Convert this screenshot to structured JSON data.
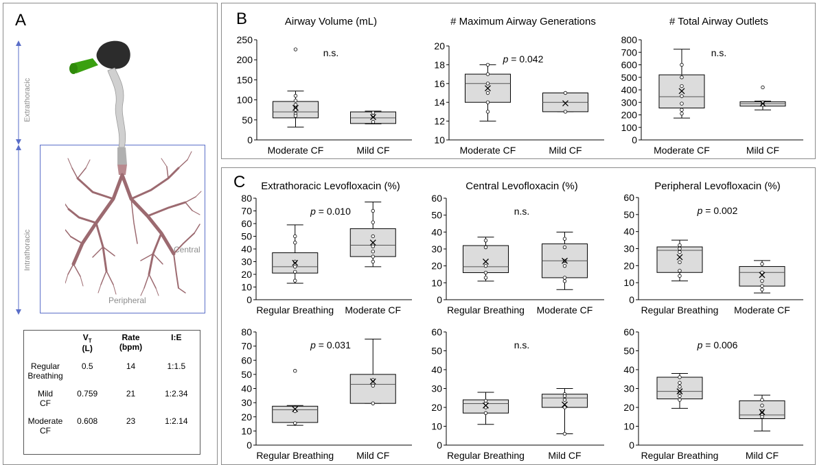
{
  "panel_a": {
    "label": "A",
    "labels": {
      "extrathoracic": "Extrathoracic",
      "intrathoracic": "Intrathoracic",
      "central": "Central",
      "peripheral": "Peripheral"
    },
    "table": {
      "headers": [
        "",
        "V_T (L)",
        "Rate (bpm)",
        "I:E"
      ],
      "header_vt": "V",
      "header_vt_sub": "T",
      "header_vt_unit": "(L)",
      "header_rate": "Rate",
      "header_rate_unit": "(bpm)",
      "header_ie": "I:E",
      "rows": [
        {
          "name": "Regular Breathing",
          "name1": "Regular",
          "name2": "Breathing",
          "vt": "0.5",
          "rate": "14",
          "ie": "1:1.5"
        },
        {
          "name": "Mild CF",
          "name1": "Mild",
          "name2": "CF",
          "vt": "0.759",
          "rate": "21",
          "ie": "1:2.34"
        },
        {
          "name": "Moderate CF",
          "name1": "Moderate",
          "name2": "CF",
          "vt": "0.608",
          "rate": "23",
          "ie": "1:2.14"
        }
      ]
    }
  },
  "panel_b_label": "B",
  "panel_c_label": "C",
  "colors": {
    "box_fill": "#dcdcdc",
    "box_stroke": "#000000",
    "airway_upper": "#d0d0d0",
    "airway_lower": "#b88a8f",
    "mouthpiece": "#3aa010",
    "region_box": "#5a6ec8"
  },
  "chart_data": [
    {
      "type": "box",
      "title": "Airway Volume (mL)",
      "categories": [
        "Moderate CF",
        "Mild CF"
      ],
      "ylim": [
        0,
        250
      ],
      "yticks": [
        0,
        50,
        100,
        150,
        200,
        250
      ],
      "annotation": "n.s.",
      "boxes": [
        {
          "category": "Moderate CF",
          "min": 32,
          "q1": 55,
          "median": 70,
          "q3": 96,
          "max": 122,
          "mean": 80,
          "points": [
            226,
            110,
            98,
            88,
            80,
            75,
            65,
            60
          ]
        },
        {
          "category": "Mild CF",
          "min": 40,
          "q1": 41,
          "median": 55,
          "q3": 70,
          "max": 72,
          "mean": 57,
          "points": [
            68,
            60,
            45
          ]
        }
      ]
    },
    {
      "type": "box",
      "title": "# Maximum Airway Generations",
      "categories": [
        "Moderate CF",
        "Mild CF"
      ],
      "ylim": [
        10,
        20
      ],
      "yticks": [
        10,
        12,
        14,
        16,
        18,
        20
      ],
      "annotation": "p = 0.042",
      "boxes": [
        {
          "category": "Moderate CF",
          "min": 12,
          "q1": 14,
          "median": 16,
          "q3": 17,
          "max": 18,
          "mean": 15.5,
          "points": [
            18,
            17,
            16,
            15,
            14,
            13
          ]
        },
        {
          "category": "Mild CF",
          "min": 13,
          "q1": 13,
          "median": 14,
          "q3": 15,
          "max": 15,
          "mean": 13.9,
          "points": [
            15,
            13
          ]
        }
      ]
    },
    {
      "type": "box",
      "title": "# Total Airway Outlets",
      "categories": [
        "Moderate CF",
        "Mild CF"
      ],
      "ylim": [
        0,
        800
      ],
      "yticks": [
        0,
        100,
        200,
        300,
        400,
        500,
        600,
        700,
        800
      ],
      "annotation": "n.s.",
      "boxes": [
        {
          "category": "Moderate CF",
          "min": 175,
          "q1": 255,
          "median": 345,
          "q3": 520,
          "max": 725,
          "mean": 390,
          "points": [
            600,
            500,
            430,
            350,
            290,
            240,
            210
          ]
        },
        {
          "category": "Mild CF",
          "min": 240,
          "q1": 270,
          "median": 290,
          "q3": 305,
          "max": 310,
          "mean": 290,
          "points": [
            420,
            300,
            280
          ]
        }
      ]
    },
    {
      "type": "box",
      "title": "Extrathoracic Levofloxacin (%)",
      "categories": [
        "Regular Breathing",
        "Moderate CF"
      ],
      "ylim": [
        0,
        80
      ],
      "yticks": [
        0,
        10,
        20,
        30,
        40,
        50,
        60,
        70,
        80
      ],
      "annotation": "p = 0.010",
      "boxes": [
        {
          "category": "Regular Breathing",
          "min": 13,
          "q1": 21,
          "median": 26,
          "q3": 37,
          "max": 59,
          "mean": 29,
          "points": [
            50,
            45,
            30,
            26,
            22,
            15
          ]
        },
        {
          "category": "Moderate CF",
          "min": 26,
          "q1": 34,
          "median": 43,
          "q3": 56,
          "max": 77,
          "mean": 45,
          "points": [
            70,
            61,
            50,
            42,
            38,
            34,
            30
          ]
        }
      ]
    },
    {
      "type": "box",
      "title": "Central Levofloxacin (%)",
      "categories": [
        "Regular Breathing",
        "Moderate CF"
      ],
      "ylim": [
        0,
        60
      ],
      "yticks": [
        0,
        10,
        20,
        30,
        40,
        50,
        60
      ],
      "annotation": "n.s.",
      "boxes": [
        {
          "category": "Regular Breathing",
          "min": 11,
          "q1": 16,
          "median": 19.5,
          "q3": 32,
          "max": 37,
          "mean": 22.5,
          "points": [
            35,
            31,
            20,
            16,
            13
          ]
        },
        {
          "category": "Moderate CF",
          "min": 6,
          "q1": 13,
          "median": 23,
          "q3": 33,
          "max": 40,
          "mean": 23,
          "points": [
            36,
            31,
            23,
            20,
            13,
            11
          ]
        }
      ]
    },
    {
      "type": "box",
      "title": "Peripheral Levofloxacin (%)",
      "categories": [
        "Regular Breathing",
        "Moderate CF"
      ],
      "ylim": [
        0,
        60
      ],
      "yticks": [
        0,
        10,
        20,
        30,
        40,
        50,
        60
      ],
      "annotation": "p = 0.002",
      "boxes": [
        {
          "category": "Regular Breathing",
          "min": 11,
          "q1": 16,
          "median": 29,
          "q3": 31,
          "max": 35,
          "mean": 25,
          "points": [
            32,
            30,
            28,
            22,
            17,
            14
          ]
        },
        {
          "category": "Moderate CF",
          "min": 4,
          "q1": 8,
          "median": 16,
          "q3": 19.5,
          "max": 23,
          "mean": 14.5,
          "points": [
            21,
            16,
            11,
            8,
            6
          ]
        }
      ]
    },
    {
      "type": "box",
      "title": "",
      "categories": [
        "Regular Breathing",
        "Mild CF"
      ],
      "ylim": [
        0,
        80
      ],
      "yticks": [
        0,
        10,
        20,
        30,
        40,
        50,
        60,
        70,
        80
      ],
      "annotation": "p = 0.031",
      "boxes": [
        {
          "category": "Regular Breathing",
          "min": 14,
          "q1": 16,
          "median": 25,
          "q3": 27.5,
          "max": 28,
          "mean": 25.5,
          "points": [
            52.5,
            24,
            15.5
          ]
        },
        {
          "category": "Mild CF",
          "min": 29.5,
          "q1": 29.5,
          "median": 43,
          "q3": 50,
          "max": 75,
          "mean": 45,
          "points": [
            46,
            42,
            29.5
          ]
        }
      ]
    },
    {
      "type": "box",
      "title": "",
      "categories": [
        "Regular Breathing",
        "Mild CF"
      ],
      "ylim": [
        0,
        60
      ],
      "yticks": [
        0,
        10,
        20,
        30,
        40,
        50,
        60
      ],
      "annotation": "n.s.",
      "boxes": [
        {
          "category": "Regular Breathing",
          "min": 11,
          "q1": 17,
          "median": 22,
          "q3": 24,
          "max": 28,
          "mean": 21,
          "points": [
            23.5,
            22,
            20,
            17
          ]
        },
        {
          "category": "Mild CF",
          "min": 6,
          "q1": 20,
          "median": 25,
          "q3": 27,
          "max": 30,
          "mean": 21.5,
          "points": [
            27,
            26,
            24,
            20,
            6
          ]
        }
      ]
    },
    {
      "type": "box",
      "title": "",
      "categories": [
        "Regular Breathing",
        "Mild CF"
      ],
      "ylim": [
        0,
        60
      ],
      "yticks": [
        0,
        10,
        20,
        30,
        40,
        50,
        60
      ],
      "annotation": "p = 0.006",
      "boxes": [
        {
          "category": "Regular Breathing",
          "min": 19.5,
          "q1": 24.5,
          "median": 28.5,
          "q3": 36,
          "max": 38,
          "mean": 28.5,
          "points": [
            36,
            33,
            31,
            28,
            26,
            24
          ]
        },
        {
          "category": "Mild CF",
          "min": 7.5,
          "q1": 14,
          "median": 16,
          "q3": 23.5,
          "max": 26.5,
          "mean": 17.5,
          "points": [
            24,
            21,
            18,
            16,
            15
          ]
        }
      ]
    }
  ]
}
